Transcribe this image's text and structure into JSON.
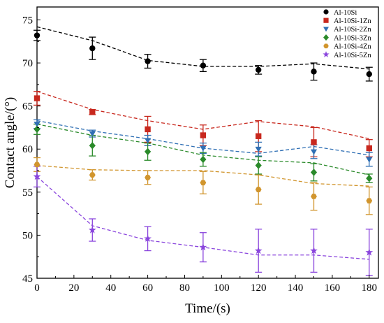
{
  "chart_data": {
    "type": "scatter",
    "xlabel": "Time/(s)",
    "ylabel": "Contact angle/(°)",
    "xlim": [
      0,
      185
    ],
    "ylim": [
      45,
      76.5
    ],
    "xticks": [
      0,
      20,
      40,
      60,
      80,
      100,
      120,
      140,
      160,
      180
    ],
    "yticks": [
      45,
      50,
      55,
      60,
      65,
      70,
      75
    ],
    "legend_position": "top-right",
    "grid": false,
    "x": [
      0,
      30,
      60,
      90,
      120,
      150,
      180
    ],
    "series": [
      {
        "name": "Al-10Si",
        "marker": "circle",
        "color": "#000000",
        "values": [
          73.2,
          71.7,
          70.2,
          69.7,
          69.2,
          69.0,
          68.7
        ],
        "errors": [
          0.6,
          1.3,
          0.8,
          0.7,
          0.5,
          1.0,
          0.8
        ],
        "trend": [
          74.2,
          72.6,
          70.3,
          69.6,
          69.6,
          69.9,
          69.3
        ]
      },
      {
        "name": "Al-10Si-1Zn",
        "marker": "square",
        "color": "#c8281e",
        "values": [
          65.9,
          64.3,
          62.3,
          61.6,
          61.5,
          60.8,
          60.1
        ],
        "errors": [
          0.8,
          0.3,
          1.5,
          1.2,
          1.8,
          1.7,
          1.0
        ],
        "trend": [
          66.7,
          64.6,
          63.3,
          62.3,
          63.2,
          62.6,
          61.2
        ]
      },
      {
        "name": "Al-10Si-2Zn",
        "marker": "triangle-down",
        "color": "#2f6fb4",
        "values": [
          62.9,
          61.8,
          61.0,
          60.1,
          60.0,
          59.7,
          58.8
        ],
        "errors": [
          0.5,
          0.4,
          0.6,
          0.6,
          0.8,
          0.8,
          0.8
        ],
        "trend": [
          63.3,
          62.1,
          61.2,
          60.1,
          59.5,
          60.3,
          59.3
        ]
      },
      {
        "name": "Al-10Si-3Zn",
        "marker": "diamond",
        "color": "#2a8a2a",
        "values": [
          62.3,
          60.4,
          59.7,
          58.8,
          58.1,
          57.3,
          56.6
        ],
        "errors": [
          0.6,
          1.2,
          1.0,
          0.8,
          1.0,
          1.0,
          0.5
        ],
        "trend": [
          62.9,
          61.6,
          60.7,
          59.3,
          58.7,
          58.4,
          57.0
        ]
      },
      {
        "name": "Al-10Si-4Zn",
        "marker": "hexagon",
        "color": "#d1952d",
        "values": [
          58.2,
          57.0,
          56.7,
          56.1,
          55.3,
          54.5,
          54.0
        ],
        "errors": [
          0.8,
          0.6,
          0.8,
          1.3,
          1.7,
          1.6,
          1.6
        ],
        "trend": [
          58.1,
          57.6,
          57.5,
          57.5,
          57.0,
          56.0,
          55.7
        ]
      },
      {
        "name": "Al-10Si-5Zn",
        "marker": "star",
        "color": "#8a45dd",
        "values": [
          56.8,
          50.6,
          49.6,
          48.6,
          48.2,
          48.2,
          48.0
        ],
        "errors": [
          1.2,
          1.3,
          1.4,
          1.7,
          2.5,
          2.5,
          2.7
        ],
        "trend": [
          56.8,
          51.1,
          49.4,
          48.6,
          47.7,
          47.7,
          47.2
        ]
      }
    ]
  }
}
